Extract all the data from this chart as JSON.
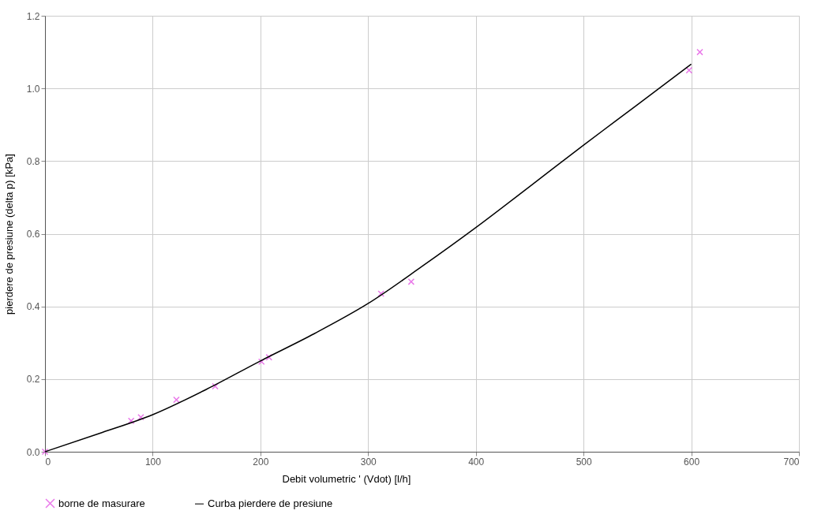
{
  "chart_data": {
    "type": "scatter",
    "xlabel": "Debit volumetric ' (Vdot) [l/h]",
    "ylabel": "pierdere de presiune  (delta p) [kPa]",
    "xlim": [
      0,
      700
    ],
    "xticks": [
      0,
      100,
      200,
      300,
      400,
      500,
      600,
      700
    ],
    "ylim": [
      0,
      1.2
    ],
    "yticks": [
      {
        "value": 0,
        "label": "0.0"
      },
      {
        "value": 0.2,
        "label": "0.2"
      },
      {
        "value": 0.4,
        "label": "0.4"
      },
      {
        "value": 0.6,
        "label": "0.6"
      },
      {
        "value": 0.8,
        "label": "0.8"
      },
      {
        "value": 1,
        "label": "1.0"
      },
      {
        "value": 1.2,
        "label": "1.2"
      }
    ],
    "grid": true,
    "legend": "bottom",
    "series": [
      {
        "name": "borne de masurare",
        "marker": "cross",
        "color": "#e040e0",
        "x": [
          0,
          80,
          89,
          122,
          158,
          201,
          208,
          312,
          340,
          598,
          608
        ],
        "values": [
          0,
          0.085,
          0.095,
          0.143,
          0.18,
          0.248,
          0.26,
          0.435,
          0.468,
          1.05,
          1.1
        ]
      },
      {
        "name": "Curba pierdere de presiune",
        "type": "line",
        "line_style": "solid",
        "color": "#000000",
        "x": [
          0,
          50,
          100,
          150,
          200,
          250,
          300,
          350,
          400,
          450,
          500,
          550,
          600
        ],
        "values": [
          0,
          0.05,
          0.102,
          0.172,
          0.25,
          0.325,
          0.408,
          0.51,
          0.617,
          0.73,
          0.844,
          0.955,
          1.067
        ]
      }
    ]
  }
}
